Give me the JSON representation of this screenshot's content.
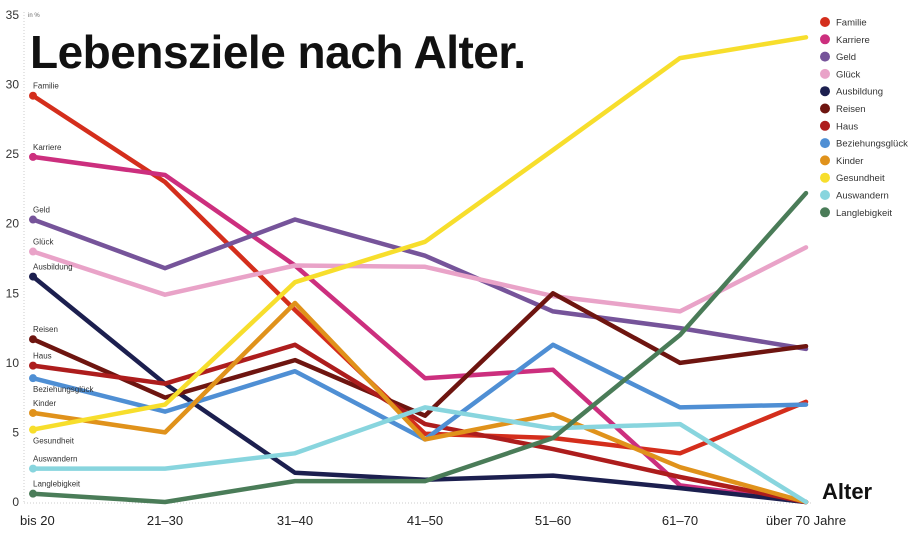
{
  "chart_data": {
    "type": "line",
    "title": "Lebensziele nach Alter.",
    "xlabel": "Alter",
    "ylabel": "in %",
    "ylim": [
      0,
      35
    ],
    "yticks": [
      0,
      5,
      10,
      15,
      20,
      25,
      30,
      35
    ],
    "grid": false,
    "legend_position": "right",
    "categories": [
      "bis 20",
      "21–30",
      "31–40",
      "41–50",
      "51–60",
      "61–70",
      "über 70 Jahre"
    ],
    "series": [
      {
        "name": "Familie",
        "color": "#d42e1c",
        "values": [
          29.2,
          23.0,
          13.8,
          4.9,
          4.6,
          3.5,
          7.2
        ]
      },
      {
        "name": "Karriere",
        "color": "#cc2f7e",
        "values": [
          24.8,
          23.5,
          17.0,
          8.9,
          9.5,
          1.2,
          0
        ]
      },
      {
        "name": "Geld",
        "color": "#76549a",
        "values": [
          20.3,
          16.8,
          20.3,
          17.7,
          13.7,
          12.5,
          11.0
        ]
      },
      {
        "name": "Glück",
        "color": "#e9a3c8",
        "values": [
          18.0,
          14.9,
          17.0,
          16.9,
          14.8,
          13.7,
          18.3
        ]
      },
      {
        "name": "Ausbildung",
        "color": "#1c1f4f",
        "values": [
          16.2,
          8.5,
          2.1,
          1.6,
          1.9,
          1.0,
          0
        ]
      },
      {
        "name": "Reisen",
        "color": "#6e1510",
        "values": [
          11.7,
          7.5,
          10.2,
          6.2,
          15.0,
          10.0,
          11.2
        ]
      },
      {
        "name": "Haus",
        "color": "#ad1d1d",
        "values": [
          9.8,
          8.5,
          11.3,
          5.6,
          3.8,
          1.8,
          0
        ]
      },
      {
        "name": "Beziehungsglück",
        "color": "#4f8fd4",
        "values": [
          8.9,
          6.5,
          9.4,
          4.5,
          11.3,
          6.8,
          7.0
        ]
      },
      {
        "name": "Kinder",
        "color": "#e0921b",
        "values": [
          6.4,
          5.0,
          14.3,
          4.5,
          6.3,
          2.5,
          0
        ]
      },
      {
        "name": "Gesundheit",
        "color": "#f7de2c",
        "values": [
          5.2,
          7.0,
          15.8,
          18.7,
          25.3,
          31.9,
          33.4
        ]
      },
      {
        "name": "Auswandern",
        "color": "#88d5de",
        "values": [
          2.4,
          2.4,
          3.5,
          6.8,
          5.3,
          5.6,
          0
        ]
      },
      {
        "name": "Langlebigkeit",
        "color": "#4a7c58",
        "values": [
          0.6,
          0,
          1.5,
          1.5,
          4.6,
          12.0,
          22.2
        ]
      }
    ]
  }
}
